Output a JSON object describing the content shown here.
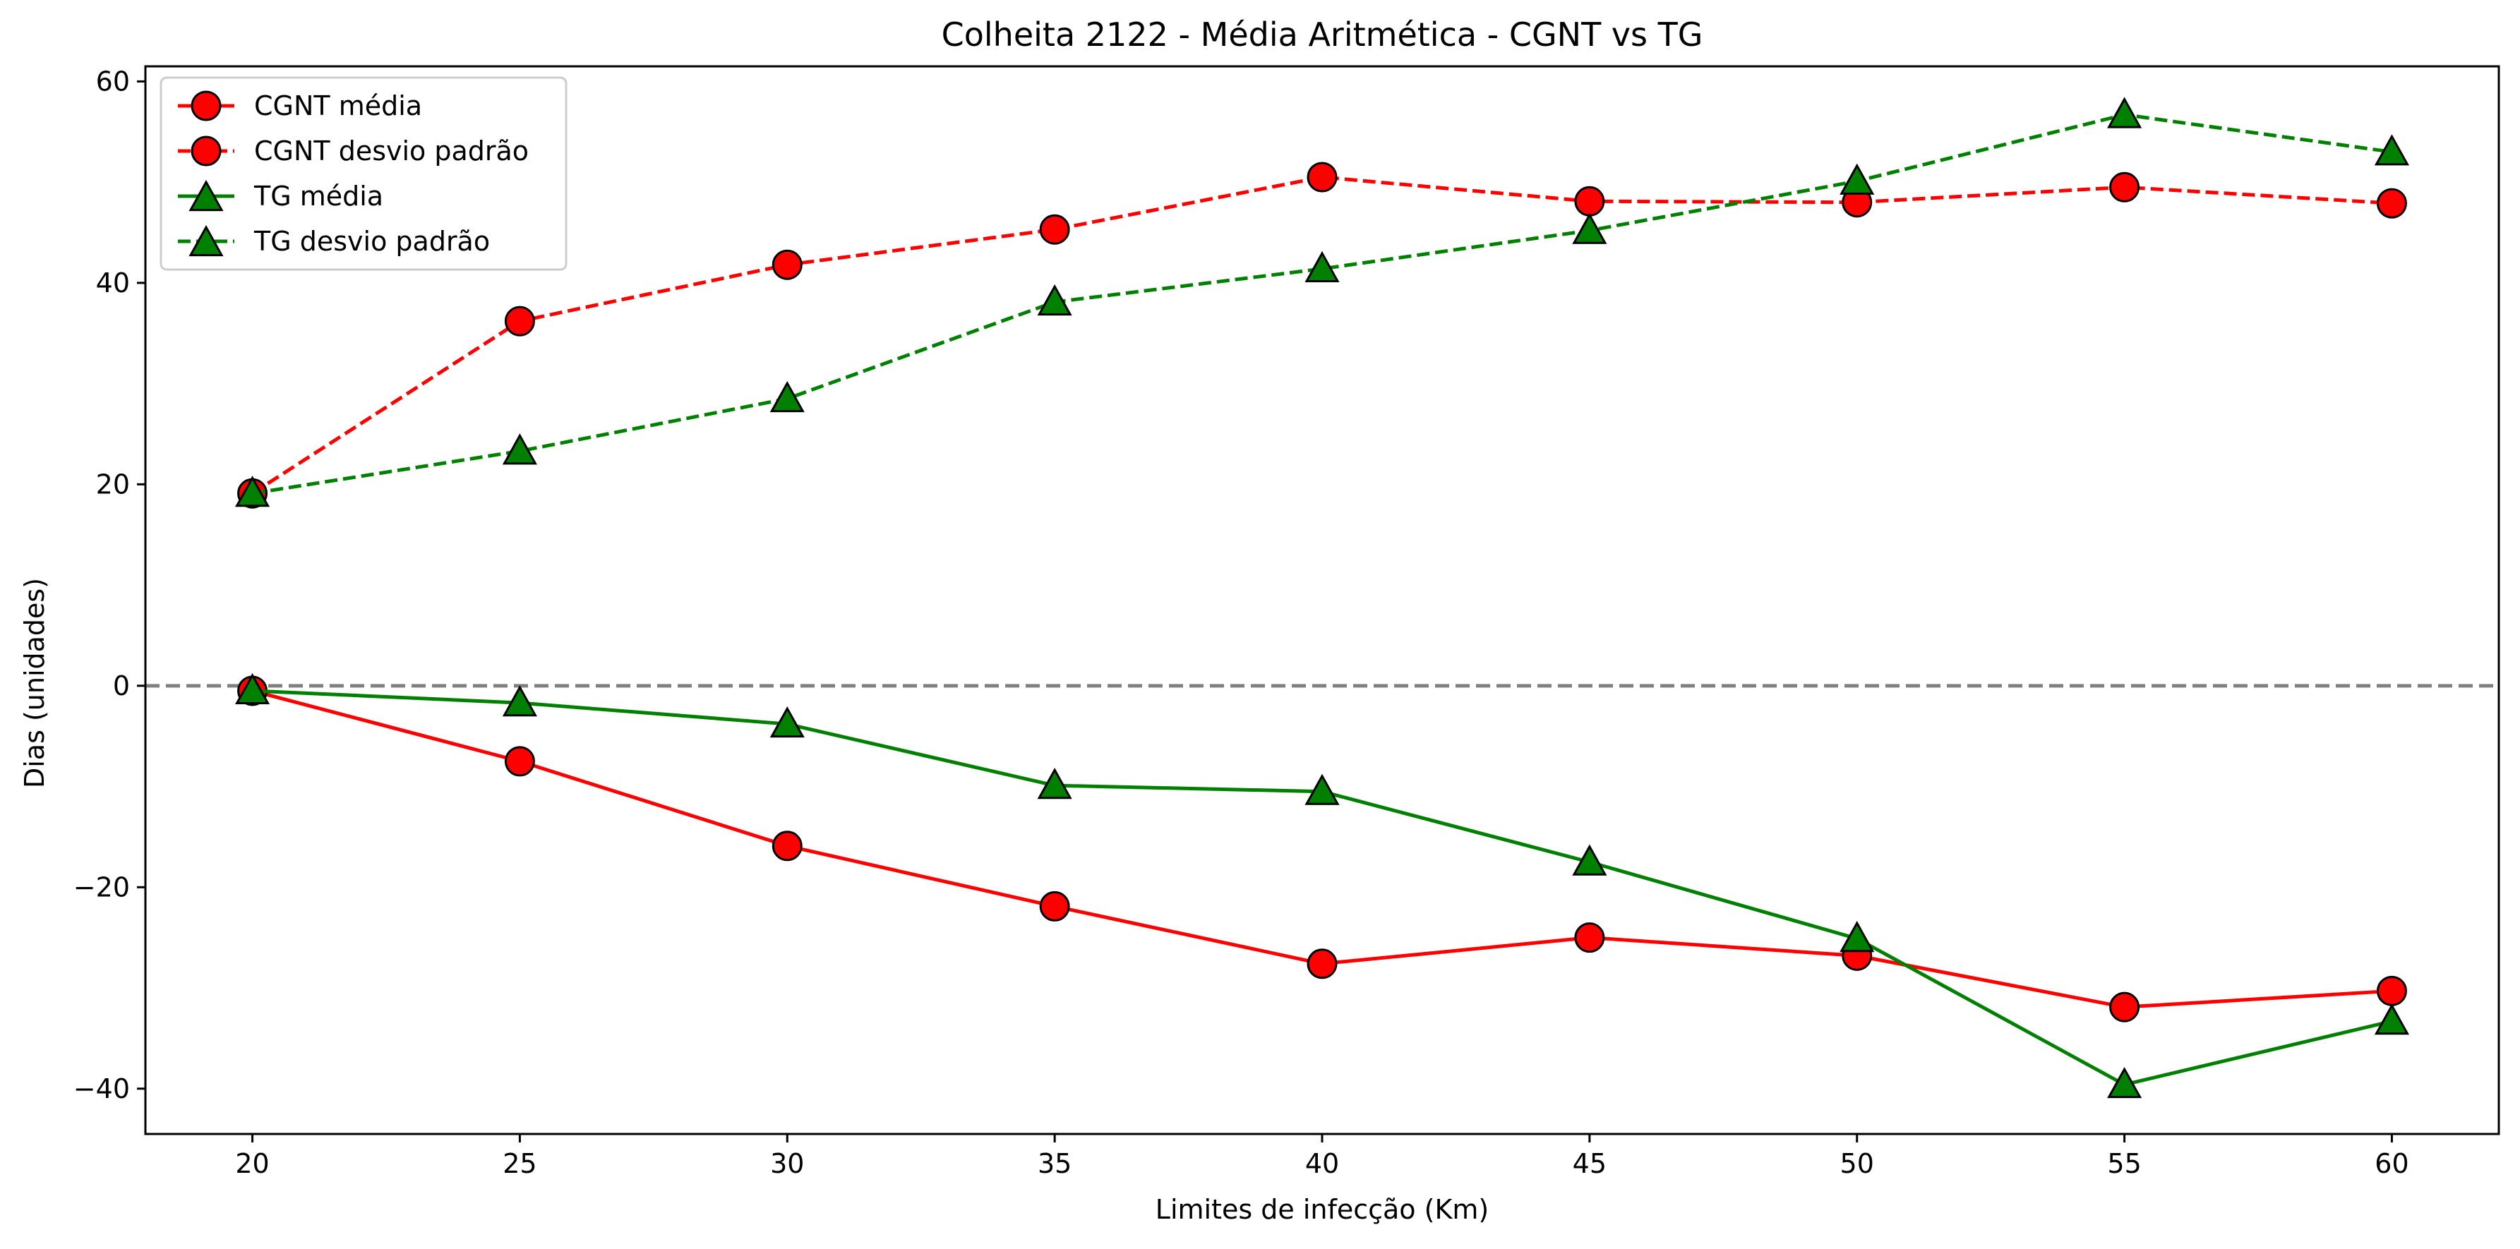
{
  "chart_data": {
    "type": "line",
    "title": "Colheita 2122 - Média Aritmética - CGNT vs TG",
    "xlabel": "Limites de infecção (Km)",
    "ylabel": "Dias (unidades)",
    "x": [
      20,
      25,
      30,
      35,
      40,
      45,
      50,
      55,
      60
    ],
    "xlim": [
      18,
      62
    ],
    "ylim": [
      -44.5,
      61.5
    ],
    "x_ticks": [
      20,
      25,
      30,
      35,
      40,
      45,
      50,
      55,
      60
    ],
    "y_ticks": [
      -40,
      -20,
      0,
      20,
      40,
      60
    ],
    "y_tick_labels": [
      "−40",
      "−20",
      "0",
      "20",
      "40",
      "60"
    ],
    "reference_line": {
      "y": 0,
      "color": "#808080",
      "style": "dashed"
    },
    "grid": false,
    "legend_position": "top-left",
    "series": [
      {
        "name": "CGNT média",
        "color": "#ff0000",
        "marker": "circle",
        "linestyle": "solid",
        "values": [
          -0.5,
          -7.5,
          -15.9,
          -21.9,
          -27.6,
          -25.0,
          -26.8,
          -31.9,
          -30.3
        ]
      },
      {
        "name": "CGNT desvio padrão",
        "color": "#ff0000",
        "marker": "circle",
        "linestyle": "dashed",
        "values": [
          19.1,
          36.2,
          41.8,
          45.3,
          50.5,
          48.1,
          48.0,
          49.5,
          47.9
        ]
      },
      {
        "name": "TG média",
        "color": "#008000",
        "marker": "triangle",
        "linestyle": "solid",
        "values": [
          -0.5,
          -1.7,
          -3.8,
          -9.9,
          -10.5,
          -17.5,
          -25.1,
          -39.6,
          -33.3
        ]
      },
      {
        "name": "TG desvio padrão",
        "color": "#008000",
        "marker": "triangle",
        "linestyle": "dashed",
        "values": [
          19.1,
          23.3,
          28.5,
          38.1,
          41.4,
          45.2,
          50.1,
          56.7,
          53.0
        ]
      }
    ]
  }
}
